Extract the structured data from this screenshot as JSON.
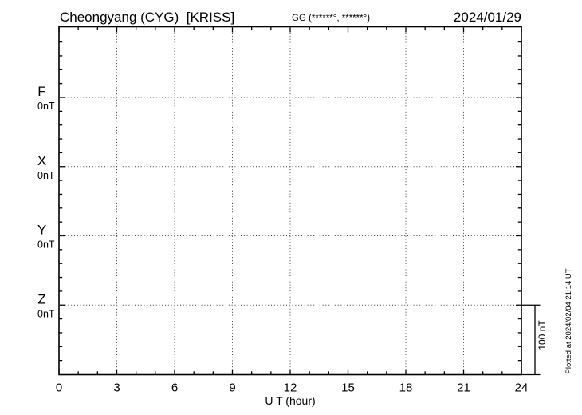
{
  "header": {
    "station_title": "Cheongyang (CYG)  [KRISS]",
    "coords_label": "GG (******°, ******°)",
    "date": "2024/01/29"
  },
  "plot": {
    "x_axis_label": "U T (hour)",
    "x_tick_labels": [
      "0",
      "3",
      "6",
      "9",
      "12",
      "15",
      "18",
      "21",
      "24"
    ],
    "channels": [
      {
        "name": "F",
        "baseline_label": "0nT",
        "color": "#FFA500"
      },
      {
        "name": "X",
        "baseline_label": "0nT",
        "color": "#00CC00"
      },
      {
        "name": "Y",
        "baseline_label": "0nT",
        "color": "#2233CC"
      },
      {
        "name": "Z",
        "baseline_label": "0nT",
        "color": "#DD1111"
      }
    ],
    "scale_bar_label": "100 nT",
    "footer_note": "Plotted at 2024/02/04 21:14 UT"
  },
  "chart_data": {
    "type": "line",
    "title": "Cheongyang (CYG)  [KRISS]",
    "subtitle_coords": "GG (******°, ******°)",
    "date": "2024/01/29",
    "xlabel": "U T (hour)",
    "x_range_hours": [
      0,
      24
    ],
    "x_major_ticks": [
      0,
      3,
      6,
      9,
      12,
      15,
      18,
      21,
      24
    ],
    "x_minor_tick_step_hours": 1,
    "y_scale": {
      "nT_per_division": 100,
      "minor_tick_nT": 20,
      "scale_bar_label": "100 nT"
    },
    "grid": {
      "horizontal_dotted_baselines": [
        "F",
        "X",
        "Y",
        "Z"
      ],
      "vertical_dotted_hours": [
        3,
        6,
        9,
        12,
        15,
        18,
        21
      ]
    },
    "series": [
      {
        "name": "F",
        "baseline_label": "0nT",
        "baseline_nT": 0,
        "color": "#FFA500",
        "values": []
      },
      {
        "name": "X",
        "baseline_label": "0nT",
        "baseline_nT": 0,
        "color": "#00CC00",
        "values": []
      },
      {
        "name": "Y",
        "baseline_label": "0nT",
        "baseline_nT": 0,
        "color": "#2233CC",
        "values": []
      },
      {
        "name": "Z",
        "baseline_label": "0nT",
        "baseline_nT": 0,
        "color": "#DD1111",
        "values": []
      }
    ],
    "no_data_traces_visible": true,
    "footer_note": "Plotted at 2024/02/04 21:14 UT"
  }
}
